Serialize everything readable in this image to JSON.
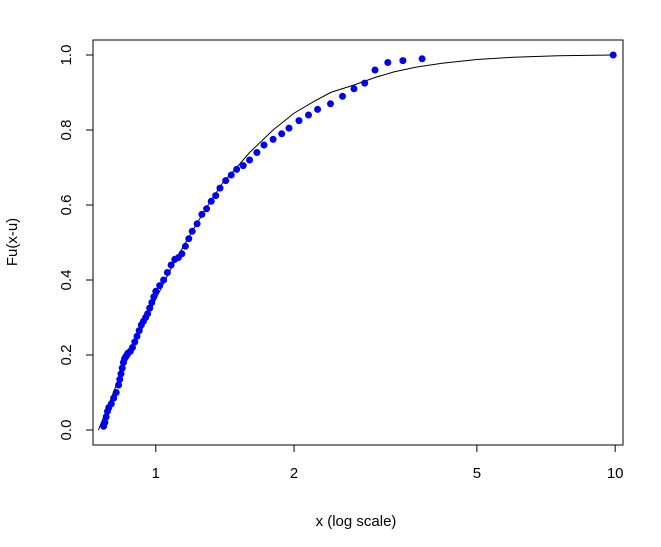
{
  "chart_data": {
    "type": "scatter",
    "title": "",
    "xlabel": "x (log scale)",
    "ylabel": "Fu(x-u)",
    "x_scale": "log",
    "xlim": [
      0.73,
      10.4
    ],
    "ylim": [
      -0.04,
      1.04
    ],
    "x_ticks": [
      1,
      2,
      5,
      10
    ],
    "y_ticks": [
      0.0,
      0.2,
      0.4,
      0.6,
      0.8,
      1.0
    ],
    "x_tick_labels": [
      "1",
      "2",
      "5",
      "10"
    ],
    "y_tick_labels": [
      "0.0",
      "0.2",
      "0.4",
      "0.6",
      "0.8",
      "1.0"
    ],
    "grid": false,
    "point_color": "#0000ee",
    "line_color": "#000000",
    "series": [
      {
        "type": "points",
        "x": [
          0.77,
          0.775,
          0.78,
          0.785,
          0.79,
          0.8,
          0.81,
          0.82,
          0.83,
          0.835,
          0.84,
          0.845,
          0.85,
          0.855,
          0.86,
          0.865,
          0.87,
          0.88,
          0.89,
          0.9,
          0.91,
          0.92,
          0.93,
          0.94,
          0.95,
          0.96,
          0.97,
          0.98,
          0.99,
          1.0,
          1.02,
          1.04,
          1.06,
          1.08,
          1.1,
          1.12,
          1.14,
          1.16,
          1.18,
          1.2,
          1.23,
          1.26,
          1.29,
          1.32,
          1.35,
          1.38,
          1.42,
          1.46,
          1.5,
          1.55,
          1.6,
          1.66,
          1.72,
          1.8,
          1.88,
          1.95,
          2.05,
          2.15,
          2.25,
          2.4,
          2.55,
          2.7,
          2.85,
          3.0,
          3.2,
          3.45,
          3.8,
          9.9
        ],
        "y": [
          0.01,
          0.02,
          0.035,
          0.05,
          0.06,
          0.07,
          0.085,
          0.1,
          0.12,
          0.135,
          0.15,
          0.165,
          0.18,
          0.19,
          0.195,
          0.2,
          0.205,
          0.21,
          0.22,
          0.235,
          0.25,
          0.265,
          0.28,
          0.29,
          0.3,
          0.31,
          0.325,
          0.34,
          0.355,
          0.37,
          0.385,
          0.4,
          0.42,
          0.44,
          0.455,
          0.46,
          0.47,
          0.49,
          0.51,
          0.53,
          0.55,
          0.575,
          0.59,
          0.61,
          0.625,
          0.645,
          0.665,
          0.68,
          0.695,
          0.705,
          0.72,
          0.74,
          0.76,
          0.775,
          0.79,
          0.805,
          0.825,
          0.84,
          0.855,
          0.87,
          0.89,
          0.91,
          0.925,
          0.96,
          0.98,
          0.985,
          0.99,
          1.0
        ]
      },
      {
        "type": "line",
        "x": [
          0.75,
          0.8,
          0.85,
          0.9,
          0.95,
          1.0,
          1.1,
          1.2,
          1.3,
          1.4,
          1.5,
          1.6,
          1.8,
          2.0,
          2.2,
          2.4,
          2.7,
          3.0,
          3.3,
          3.7,
          4.2,
          5.0,
          6.0,
          7.5,
          9.9
        ],
        "y": [
          0.0,
          0.085,
          0.17,
          0.23,
          0.29,
          0.35,
          0.45,
          0.53,
          0.6,
          0.66,
          0.7,
          0.74,
          0.8,
          0.845,
          0.875,
          0.9,
          0.92,
          0.94,
          0.955,
          0.968,
          0.978,
          0.988,
          0.994,
          0.998,
          1.0
        ]
      }
    ]
  }
}
